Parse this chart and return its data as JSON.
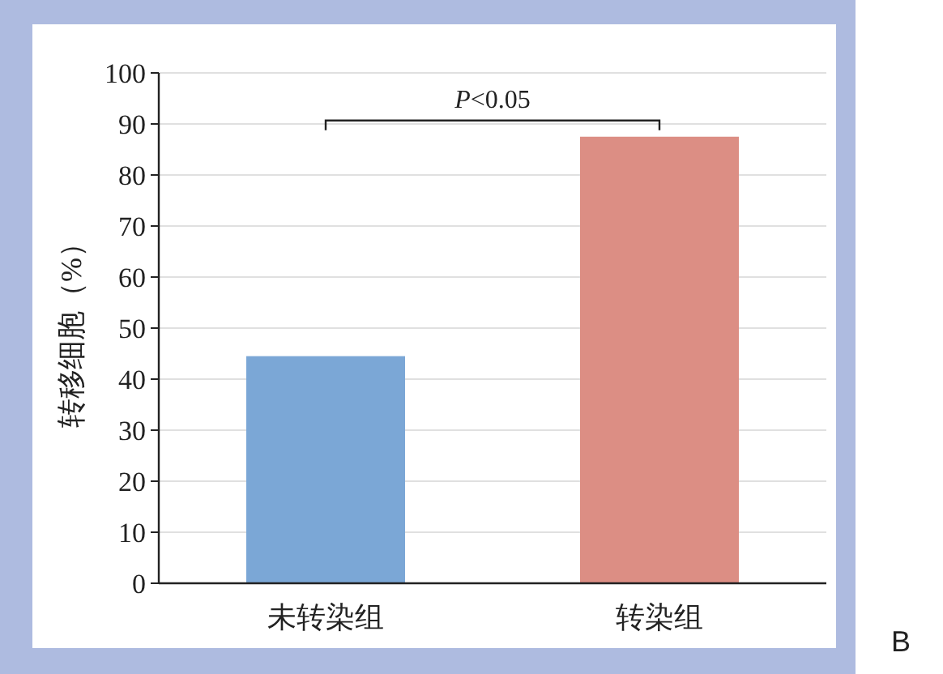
{
  "chart_data": {
    "type": "bar",
    "ylabel": "转移细胞（%）",
    "categories": [
      "未转染组",
      "转染组"
    ],
    "colors": [
      "#7ba7d6",
      "#dc8e84"
    ],
    "values": [
      44.5,
      87.5
    ],
    "ylim": [
      0,
      100
    ],
    "yticks": [
      0,
      10,
      20,
      30,
      40,
      50,
      60,
      70,
      80,
      90,
      100
    ],
    "grid": "y",
    "annotations": [
      "*P*<0.05",
      "B"
    ]
  }
}
